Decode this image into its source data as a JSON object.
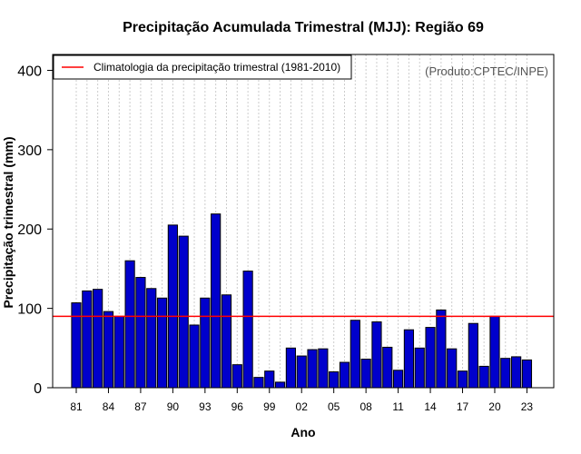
{
  "chart_data": {
    "type": "bar",
    "title": "Precipitação Acumulada Trimestral (MJJ): Região 69",
    "xlabel": "Ano",
    "ylabel": "Precipitação trimestral (mm)",
    "ylim": [
      0,
      420
    ],
    "yticks": [
      0,
      100,
      200,
      300,
      400
    ],
    "categories": [
      "1981",
      "1982",
      "1983",
      "1984",
      "1985",
      "1986",
      "1987",
      "1988",
      "1989",
      "1990",
      "1991",
      "1992",
      "1993",
      "1994",
      "1995",
      "1996",
      "1997",
      "1998",
      "1999",
      "2000",
      "2001",
      "2002",
      "2003",
      "2004",
      "2005",
      "2006",
      "2007",
      "2008",
      "2009",
      "2010",
      "2011",
      "2012",
      "2013",
      "2014",
      "2015",
      "2016",
      "2017",
      "2018",
      "2019",
      "2020",
      "2021",
      "2022",
      "2023"
    ],
    "values": [
      107,
      122,
      124,
      96,
      90,
      160,
      139,
      125,
      113,
      205,
      191,
      79,
      113,
      219,
      117,
      29,
      147,
      13,
      21,
      7,
      50,
      40,
      48,
      49,
      20,
      32,
      85,
      36,
      83,
      51,
      22,
      73,
      50,
      76,
      98,
      49,
      21,
      81,
      27,
      90,
      37,
      39,
      35
    ],
    "xtick_labels": [
      {
        "index": 0,
        "label": "81"
      },
      {
        "index": 3,
        "label": "84"
      },
      {
        "index": 6,
        "label": "87"
      },
      {
        "index": 9,
        "label": "90"
      },
      {
        "index": 12,
        "label": "93"
      },
      {
        "index": 15,
        "label": "96"
      },
      {
        "index": 18,
        "label": "99"
      },
      {
        "index": 21,
        "label": "02"
      },
      {
        "index": 24,
        "label": "05"
      },
      {
        "index": 27,
        "label": "08"
      },
      {
        "index": 30,
        "label": "11"
      },
      {
        "index": 33,
        "label": "14"
      },
      {
        "index": 36,
        "label": "17"
      },
      {
        "index": 39,
        "label": "20"
      },
      {
        "index": 42,
        "label": "23"
      }
    ],
    "climatology": {
      "label": "Climatologia da precipitação trimestral (1981-2010)",
      "value": 90
    },
    "credit": "(Produto:CPTEC/INPE)",
    "grid": "vertical-dotted",
    "legend_position": "top-left",
    "colors": {
      "bar_fill": "#0000cc",
      "bar_stroke": "#000000",
      "climatology_line": "#ff0000",
      "grid": "#cccccc"
    }
  }
}
